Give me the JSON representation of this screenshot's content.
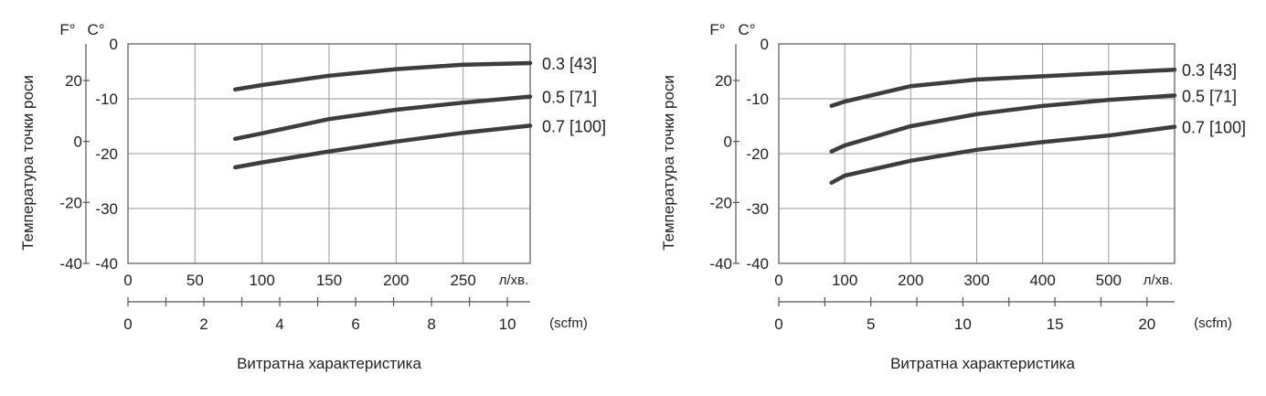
{
  "chart_data": [
    {
      "type": "line",
      "units": {
        "fahrenheit": "F°",
        "celsius": "C°",
        "flow": "л/хв.",
        "flow2": "(scfm)"
      },
      "ylabel": "Температура точки роси",
      "xlabel": "Витратна характеристика",
      "xlim": [
        0,
        300
      ],
      "ylim": [
        -40,
        0
      ],
      "x_ticks": [
        "0",
        "50",
        "100",
        "150",
        "200",
        "250"
      ],
      "x_tick_values": [
        0,
        50,
        100,
        150,
        200,
        250
      ],
      "c_ticks": [
        "0",
        "-10",
        "-20",
        "-30",
        "-40"
      ],
      "c_tick_values": [
        0,
        -10,
        -20,
        -30,
        -40
      ],
      "f_ticks": [
        "20",
        "0",
        "-20",
        "-40"
      ],
      "f_tick_values": [
        20,
        0,
        -20,
        -40
      ],
      "scfm_ticks": [
        "0",
        "2",
        "4",
        "6",
        "8",
        "10"
      ],
      "scfm_tick_values": [
        0,
        2,
        4,
        6,
        8,
        10
      ],
      "scfm_minor": [
        1,
        3,
        5,
        7,
        9
      ],
      "scfm_max": 10.6,
      "series": [
        {
          "name": "0.3 [43]",
          "x": [
            80,
            100,
            150,
            200,
            250,
            300
          ],
          "y": [
            -8.3,
            -7.5,
            -5.8,
            -4.6,
            -3.8,
            -3.5
          ]
        },
        {
          "name": "0.5 [71]",
          "x": [
            80,
            100,
            150,
            200,
            250,
            300
          ],
          "y": [
            -17.3,
            -16.3,
            -13.7,
            -12.0,
            -10.7,
            -9.6
          ]
        },
        {
          "name": "0.7 [100]",
          "x": [
            80,
            100,
            150,
            200,
            250,
            300
          ],
          "y": [
            -22.5,
            -21.6,
            -19.6,
            -17.8,
            -16.2,
            -14.9
          ]
        }
      ]
    },
    {
      "type": "line",
      "units": {
        "fahrenheit": "F°",
        "celsius": "C°",
        "flow": "л/хв.",
        "flow2": "(scfm)"
      },
      "ylabel": "Температура точки роси",
      "xlabel": "Витратна характеристика",
      "xlim": [
        0,
        600
      ],
      "ylim": [
        -40,
        0
      ],
      "x_ticks": [
        "0",
        "100",
        "200",
        "300",
        "400",
        "500"
      ],
      "x_tick_values": [
        0,
        100,
        200,
        300,
        400,
        500
      ],
      "c_ticks": [
        "0",
        "-10",
        "-20",
        "-30",
        "-40"
      ],
      "c_tick_values": [
        0,
        -10,
        -20,
        -30,
        -40
      ],
      "f_ticks": [
        "20",
        "0",
        "-20",
        "-40"
      ],
      "f_tick_values": [
        20,
        0,
        -20,
        -40
      ],
      "scfm_ticks": [
        "0",
        "5",
        "10",
        "15",
        "20"
      ],
      "scfm_tick_values": [
        0,
        5,
        10,
        15,
        20
      ],
      "scfm_minor": [
        2.5,
        7.5,
        12.5,
        17.5
      ],
      "scfm_max": 21.5,
      "series": [
        {
          "name": "0.3 [43]",
          "x": [
            80,
            100,
            200,
            300,
            400,
            500,
            600
          ],
          "y": [
            -11.3,
            -10.5,
            -7.7,
            -6.5,
            -5.9,
            -5.3,
            -4.7
          ]
        },
        {
          "name": "0.5 [71]",
          "x": [
            80,
            100,
            200,
            300,
            400,
            500,
            600
          ],
          "y": [
            -19.6,
            -18.5,
            -15.0,
            -12.8,
            -11.3,
            -10.2,
            -9.4
          ]
        },
        {
          "name": "0.7 [100]",
          "x": [
            80,
            100,
            200,
            300,
            400,
            500,
            600
          ],
          "y": [
            -25.3,
            -24.0,
            -21.3,
            -19.3,
            -17.9,
            -16.7,
            -15.1
          ]
        }
      ]
    }
  ]
}
